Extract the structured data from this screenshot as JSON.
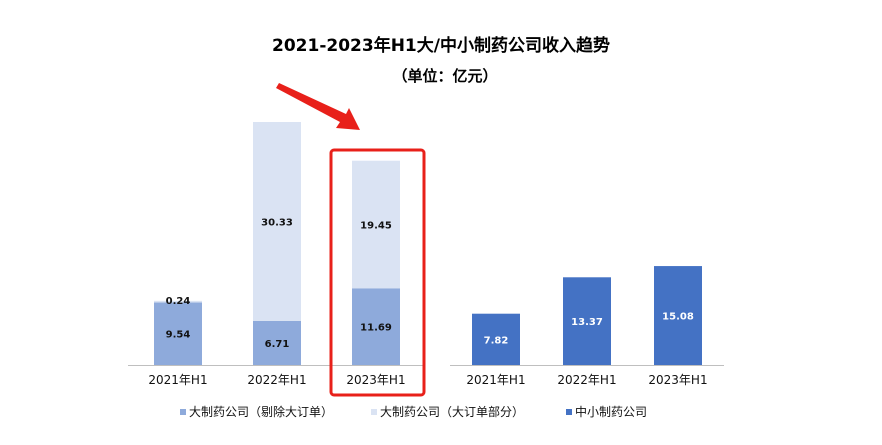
{
  "chart_data": {
    "type": "bar",
    "title": "2021-2023年H1大/中小制药公司收入趋势",
    "subtitle": "（单位：亿元）",
    "groups": [
      {
        "stacked": true,
        "categories": [
          "2021年H1",
          "2022年H1",
          "2023年H1"
        ],
        "series": [
          {
            "name": "大制药公司（剔除大订单）",
            "values": [
              9.54,
              6.71,
              11.69
            ],
            "color": "#8eaadb",
            "label_color": "#111111"
          },
          {
            "name": "大制药公司（大订单部分）",
            "values": [
              0.24,
              30.33,
              19.45
            ],
            "color": "#dae3f3",
            "label_color": "#111111"
          }
        ]
      },
      {
        "stacked": false,
        "categories": [
          "2021年H1",
          "2022年H1",
          "2023年H1"
        ],
        "series": [
          {
            "name": "中小制药公司",
            "values": [
              7.82,
              13.37,
              15.08
            ],
            "color": "#4472c4",
            "label_color": "#ffffff"
          }
        ]
      }
    ],
    "legend_position": "bottom",
    "grid": false,
    "annotations": [
      {
        "type": "arrow",
        "target": "2023年H1",
        "color": "#e8201a"
      },
      {
        "type": "highlight-box",
        "target": "2023年H1",
        "color": "#e8201a"
      }
    ]
  }
}
